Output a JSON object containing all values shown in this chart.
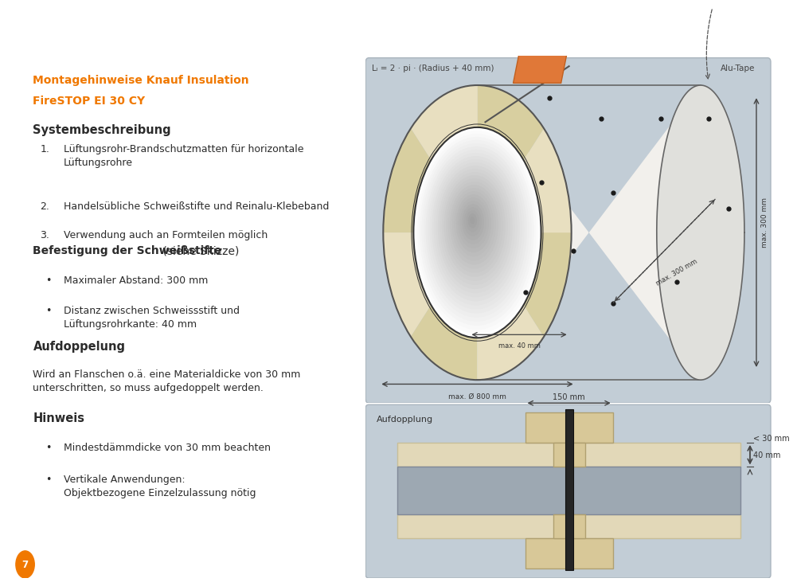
{
  "bg_color": "#ffffff",
  "orange_color": "#F07800",
  "dark_text": "#2b2b2b",
  "title_line1": "Montagehinweise Knauf Insulation",
  "title_line2": "FireSTOP EI 30 CY",
  "section1_title": "Systembeschreibung",
  "section1_items": [
    "Lüftungsrohr-Brandschutzmatten für horizontale\nLüftungsrohre",
    "Handelsübliche Schweißstifte und Reinalu-Klebeband",
    "Verwendung auch an Formteilen möglich"
  ],
  "section2_title_bold": "Befestigung der Schweißstifte",
  "section2_title_normal": " (siehe Skizze)",
  "section2_items": [
    "Maximaler Abstand: 300 mm",
    "Distanz zwischen Schweissstift und\nLüftungsrohrkante: 40 mm"
  ],
  "section3_title": "Aufdoppelung",
  "section3_text": "Wird an Flanschen o.ä. eine Materialdicke von 30 mm\nunterschritten, so muss aufgedoppelt werden.",
  "section4_title": "Hinweis",
  "section4_items": [
    "Mindestdämmdicke von 30 mm beachten",
    "Vertikale Anwendungen:\nObjektbezogene Einzelzulassung nötig"
  ],
  "page_number": "7",
  "sketch_bg_top": "#b8c4ce",
  "sketch_bg_bot": "#b8c4ce",
  "sketch_label1": "Lₗ = 2 · pi · (Radius + 40 mm)",
  "sketch_label2": "Alu-Tape",
  "sketch_label3": "max. 300 mm",
  "sketch_label4": "max. 300 mm",
  "sketch_label5": "max. 40 mm",
  "sketch_label6": "max. Ø 800 mm",
  "aufdopplung_label": "Aufdopplung",
  "aufdopplung_150": "150 mm",
  "aufdopplung_40": "40 mm",
  "aufdopplung_30": "< 30 mm"
}
